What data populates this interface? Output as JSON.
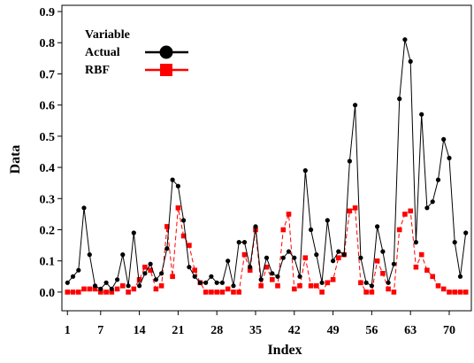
{
  "chart_data": {
    "type": "line",
    "xlabel": "Index",
    "ylabel": "Data",
    "xlim": [
      0,
      74
    ],
    "ylim": [
      -0.06,
      0.92
    ],
    "x_ticks": [
      1,
      7,
      14,
      21,
      28,
      35,
      42,
      49,
      56,
      63,
      70
    ],
    "y_ticks": [
      0.0,
      0.1,
      0.2,
      0.3,
      0.4,
      0.5,
      0.6,
      0.7,
      0.8,
      0.9
    ],
    "y_tick_labels": [
      "0.0",
      "0.1",
      "0.2",
      "0.3",
      "0.4",
      "0.5",
      "0.6",
      "0.7",
      "0.8",
      "0.9"
    ],
    "legend": {
      "title": "Variable",
      "position": "top-left"
    },
    "grid": false,
    "series": [
      {
        "name": "Actual",
        "color": "#000000",
        "marker": "circle",
        "line_style": "solid",
        "values": [
          0.03,
          0.05,
          0.07,
          0.27,
          0.12,
          0.02,
          0.01,
          0.03,
          0.01,
          0.04,
          0.12,
          0.02,
          0.19,
          0.02,
          0.06,
          0.09,
          0.04,
          0.06,
          0.14,
          0.36,
          0.34,
          0.23,
          0.08,
          0.05,
          0.03,
          0.03,
          0.05,
          0.03,
          0.03,
          0.1,
          0.02,
          0.16,
          0.16,
          0.08,
          0.21,
          0.04,
          0.11,
          0.06,
          0.05,
          0.11,
          0.13,
          0.11,
          0.05,
          0.39,
          0.2,
          0.12,
          0.03,
          0.23,
          0.1,
          0.13,
          0.12,
          0.42,
          0.6,
          0.11,
          0.03,
          0.02,
          0.21,
          0.13,
          0.03,
          0.09,
          0.62,
          0.81,
          0.74,
          0.16,
          0.57,
          0.27,
          0.29,
          0.36,
          0.49,
          0.43,
          0.16,
          0.05,
          0.19
        ]
      },
      {
        "name": "RBF",
        "color": "#ff0000",
        "marker": "square",
        "line_style": "dashed",
        "values": [
          0.0,
          0.0,
          0.0,
          0.01,
          0.01,
          0.01,
          0.0,
          0.0,
          0.0,
          0.01,
          0.02,
          0.0,
          0.01,
          0.04,
          0.08,
          0.07,
          0.01,
          0.02,
          0.21,
          0.05,
          0.27,
          0.18,
          0.15,
          0.07,
          0.03,
          0.0,
          0.0,
          0.0,
          0.0,
          0.01,
          0.0,
          0.0,
          0.12,
          0.07,
          0.2,
          0.02,
          0.08,
          0.04,
          0.02,
          0.2,
          0.25,
          0.01,
          0.02,
          0.11,
          0.02,
          0.02,
          0.0,
          0.03,
          0.04,
          0.11,
          0.12,
          0.26,
          0.27,
          0.03,
          0.0,
          0.0,
          0.1,
          0.06,
          0.01,
          0.0,
          0.2,
          0.25,
          0.26,
          0.08,
          0.12,
          0.07,
          0.05,
          0.02,
          0.01,
          0.0,
          0.0,
          0.0,
          0.0
        ]
      }
    ]
  }
}
